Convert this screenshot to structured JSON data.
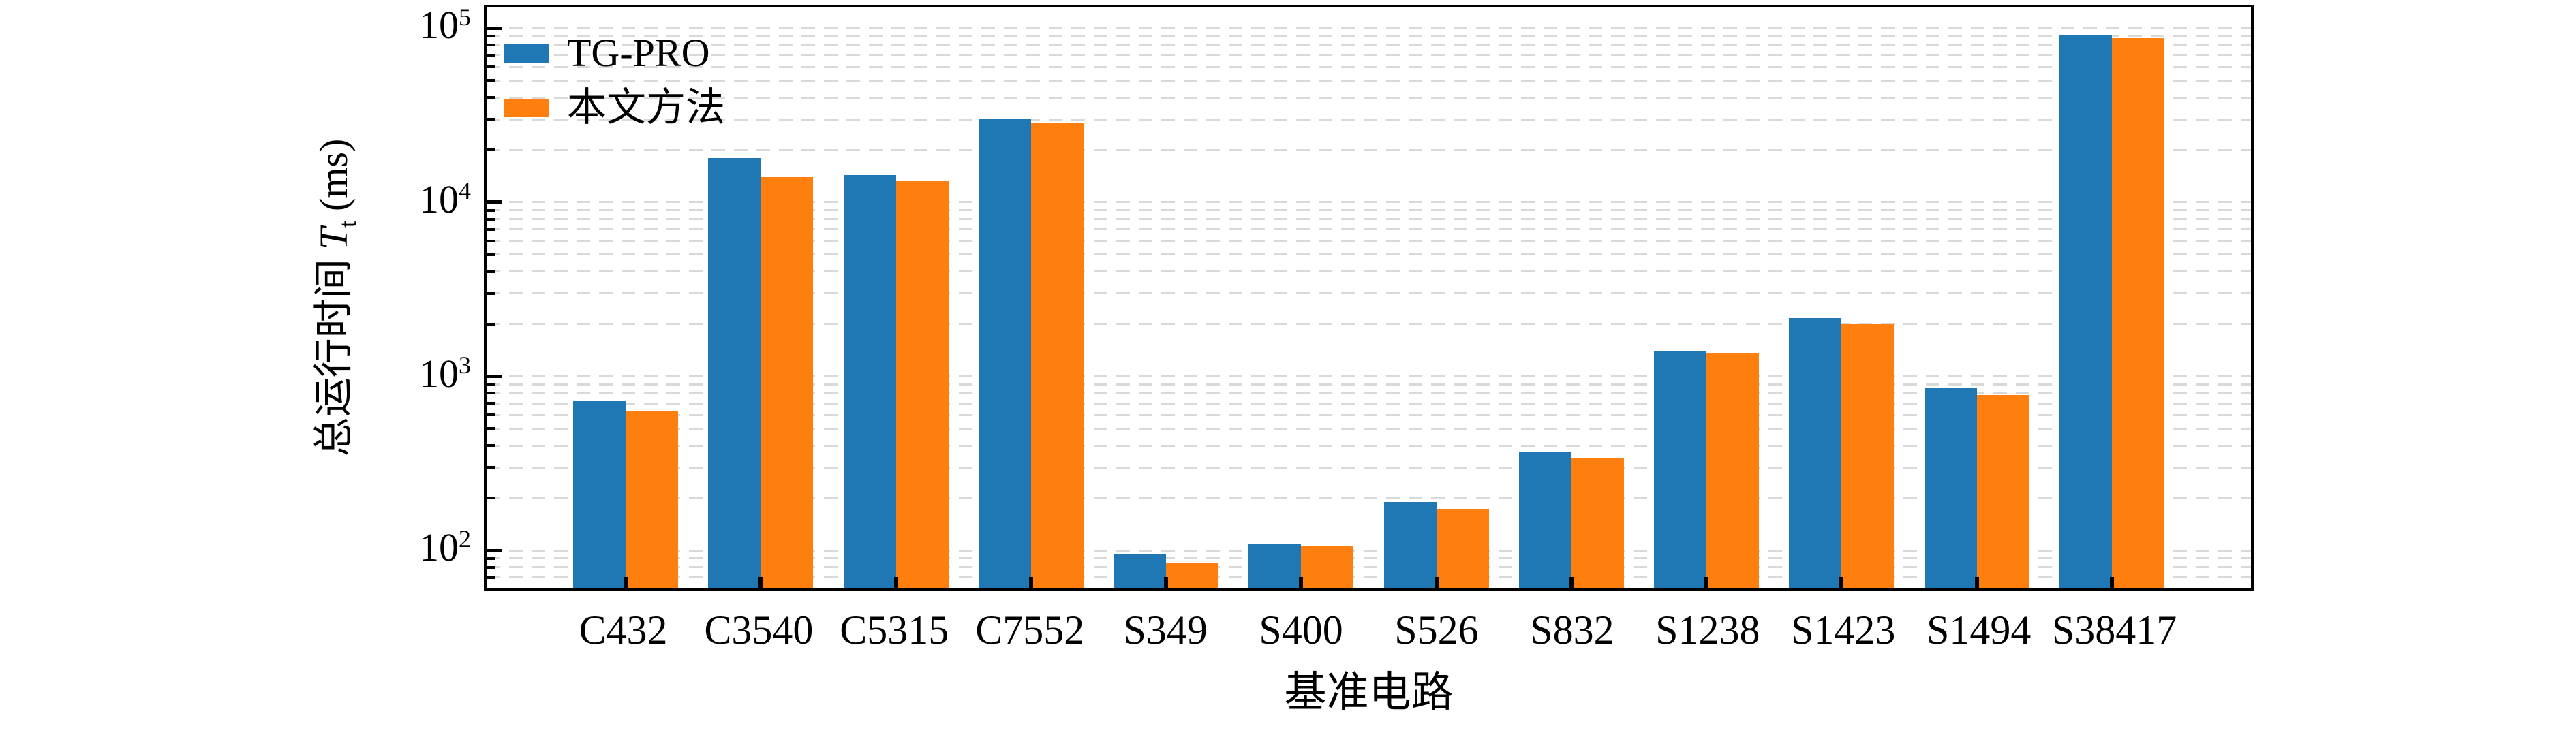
{
  "figure": {
    "background": "#ffffff"
  },
  "chart_data": {
    "type": "bar",
    "title": "",
    "xlabel": "基准电路",
    "ylabel": {
      "prefix": "总运行时间",
      "symbol": "T",
      "subscript": "t",
      "unit": "(ms)"
    },
    "yscale": "log",
    "ylim": [
      61,
      131500
    ],
    "grid": "horizontal dashed gridlines at log major and minor positions",
    "legend_position": "upper left, no frame",
    "categories": [
      "C432",
      "C3540",
      "C5315",
      "C7552",
      "S349",
      "S400",
      "S526",
      "S832",
      "S1238",
      "S1423",
      "S1494",
      "S38417"
    ],
    "series": [
      {
        "name": "TG-PRO",
        "color": "#1f77b4",
        "values": [
          720,
          18000,
          14300,
          30000,
          95,
          110,
          190,
          370,
          1400,
          2160,
          855,
          92000
        ]
      },
      {
        "name": "本文方法",
        "color": "#ff7f0e",
        "values": [
          630,
          14000,
          13200,
          28500,
          85,
          107,
          172,
          340,
          1370,
          2010,
          780,
          88000
        ]
      }
    ],
    "y_ticks": [
      {
        "base": "10",
        "exp": "2",
        "value": 100
      },
      {
        "base": "10",
        "exp": "3",
        "value": 1000
      },
      {
        "base": "10",
        "exp": "4",
        "value": 10000
      },
      {
        "base": "10",
        "exp": "5",
        "value": 100000
      }
    ],
    "colors": {
      "grid": "#d9d9d9",
      "spine": "#000000",
      "tick": "#000000"
    }
  }
}
